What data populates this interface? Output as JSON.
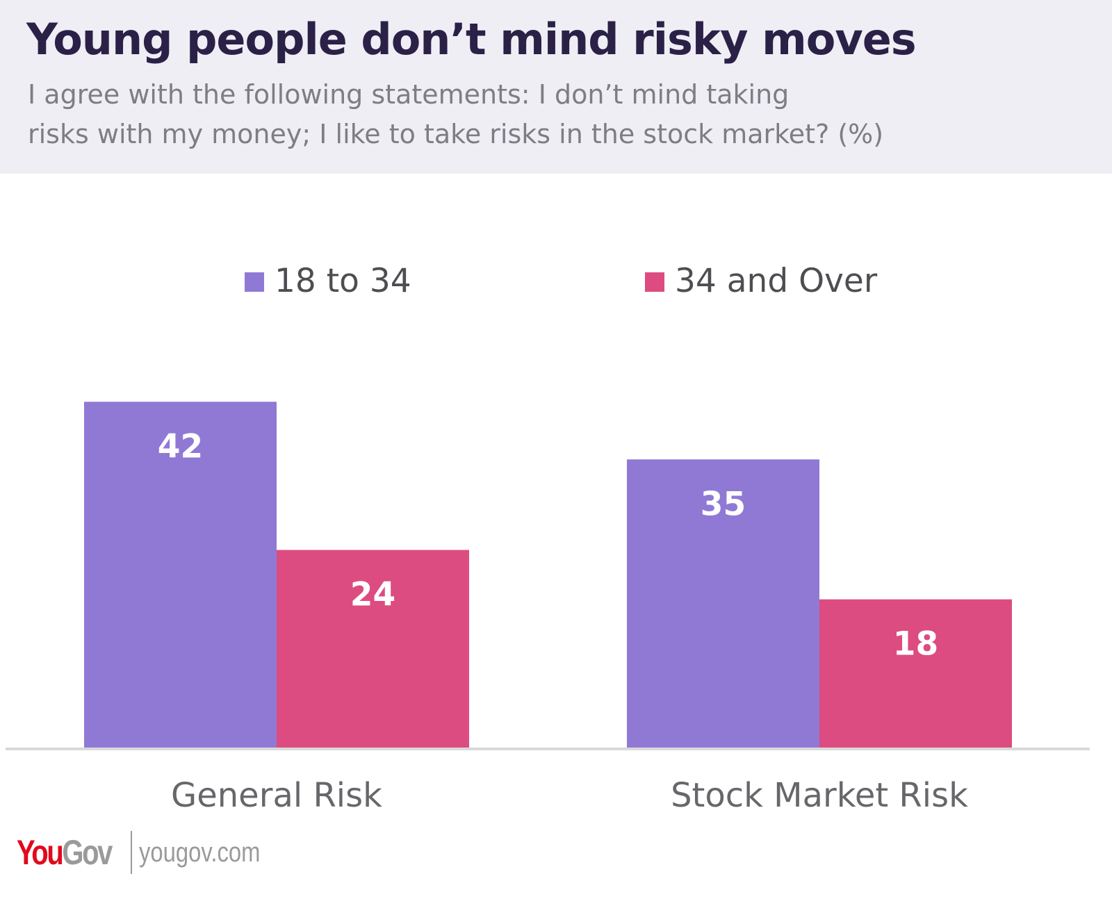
{
  "header": {
    "title": "Young people don’t mind risky moves",
    "subtitle_line1": "I agree with the following statements: I don’t mind taking",
    "subtitle_line2": "risks with my money; I like to take risks in the stock market? (%)"
  },
  "colors": {
    "header_bg": "#efeef5",
    "title": "#2b2147",
    "series_18_34": "#9079d5",
    "series_34_over": "#dc4c80",
    "baseline": "#d9d9d9"
  },
  "chart_data": {
    "type": "bar",
    "title": "Young people don’t mind risky moves",
    "subtitle": "I agree with the following statements: I don’t mind taking risks with my money; I like to take risks in the stock market? (%)",
    "categories": [
      "General Risk",
      "Stock Market Risk"
    ],
    "series": [
      {
        "name": "18 to 34",
        "values": [
          42,
          35
        ],
        "color": "#9079d5"
      },
      {
        "name": "34 and Over",
        "values": [
          24,
          18
        ],
        "color": "#dc4c80"
      }
    ],
    "xlabel": "",
    "ylabel": "",
    "ylim": [
      0,
      50
    ],
    "grid": false,
    "legend": "top-center",
    "data_labels": true
  },
  "footer": {
    "logo_you": "You",
    "logo_gov": "Gov",
    "site": "yougov.com"
  }
}
